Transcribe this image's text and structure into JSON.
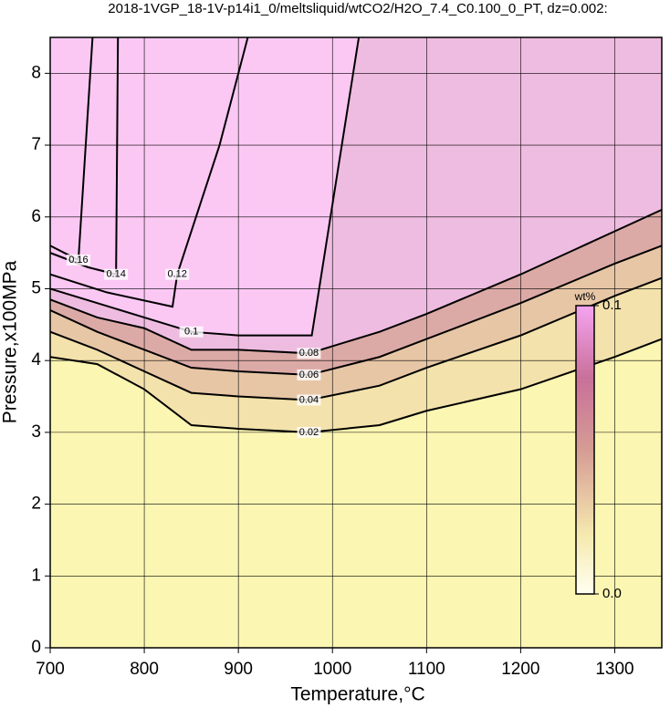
{
  "chart_data": {
    "type": "contour",
    "title": "2018-1VGP_18-1V-p14i1_0/meltsliquid/wtCO2/H2O_7.4_C0.100_0_PT, dz=0.002:",
    "xlabel": "Temperature,°C",
    "ylabel": "Pressure,x100MPa",
    "xlim": [
      700,
      1350
    ],
    "ylim": [
      0,
      8.5
    ],
    "xticks": [
      700,
      800,
      900,
      1000,
      1100,
      1200,
      1300
    ],
    "yticks": [
      0,
      1,
      2,
      3,
      4,
      5,
      6,
      7,
      8
    ],
    "grid": true,
    "background": "#fbf6b2",
    "series": [
      {
        "name": "0.02",
        "color": "#f3e2ab",
        "x": [
          700,
          750,
          800,
          850,
          900,
          975,
          1050,
          1100,
          1200,
          1300,
          1350
        ],
        "values": [
          4.05,
          3.95,
          3.6,
          3.1,
          3.05,
          3.0,
          3.1,
          3.3,
          3.6,
          4.05,
          4.3
        ]
      },
      {
        "name": "0.04",
        "color": "#e7c6a6",
        "x": [
          700,
          750,
          800,
          850,
          900,
          975,
          1050,
          1100,
          1200,
          1300,
          1350
        ],
        "values": [
          4.4,
          4.15,
          3.85,
          3.55,
          3.5,
          3.45,
          3.65,
          3.9,
          4.35,
          4.9,
          5.15
        ]
      },
      {
        "name": "0.06",
        "color": "#dcaaa6",
        "x": [
          700,
          750,
          800,
          850,
          900,
          975,
          1050,
          1100,
          1200,
          1300,
          1350
        ],
        "values": [
          4.7,
          4.4,
          4.15,
          3.9,
          3.85,
          3.8,
          4.05,
          4.3,
          4.8,
          5.35,
          5.6
        ]
      },
      {
        "name": "0.08",
        "color": "#eebce0",
        "x": [
          700,
          750,
          800,
          850,
          900,
          975,
          1050,
          1100,
          1200,
          1300,
          1350
        ],
        "values": [
          4.85,
          4.6,
          4.45,
          4.15,
          4.15,
          4.1,
          4.4,
          4.65,
          5.2,
          5.8,
          6.1
        ]
      },
      {
        "name": "0.1",
        "color": "#fbc8f4",
        "x": [
          700,
          750,
          800,
          850,
          900,
          978,
          1028
        ],
        "values": [
          5.0,
          4.8,
          4.6,
          4.4,
          4.35,
          4.35,
          8.5
        ]
      },
      {
        "name": "0.12",
        "color": "#fbc8f4",
        "x": [
          700,
          760,
          830,
          835,
          880,
          910
        ],
        "values": [
          5.2,
          4.95,
          4.75,
          5.2,
          7.0,
          8.5
        ]
      },
      {
        "name": "0.14",
        "color": "#fbc8f4",
        "x": [
          700,
          740,
          770,
          772
        ],
        "values": [
          5.5,
          5.3,
          5.2,
          8.5
        ]
      },
      {
        "name": "0.16",
        "color": "#fbc8f4",
        "x": [
          700,
          730,
          745
        ],
        "values": [
          5.6,
          5.4,
          8.5
        ]
      }
    ],
    "colorbar": {
      "label": "wt%",
      "lim": [
        0,
        0.1
      ],
      "ticks": [
        0.1,
        {
          "value": 0,
          "label": "0.0"
        }
      ]
    }
  }
}
